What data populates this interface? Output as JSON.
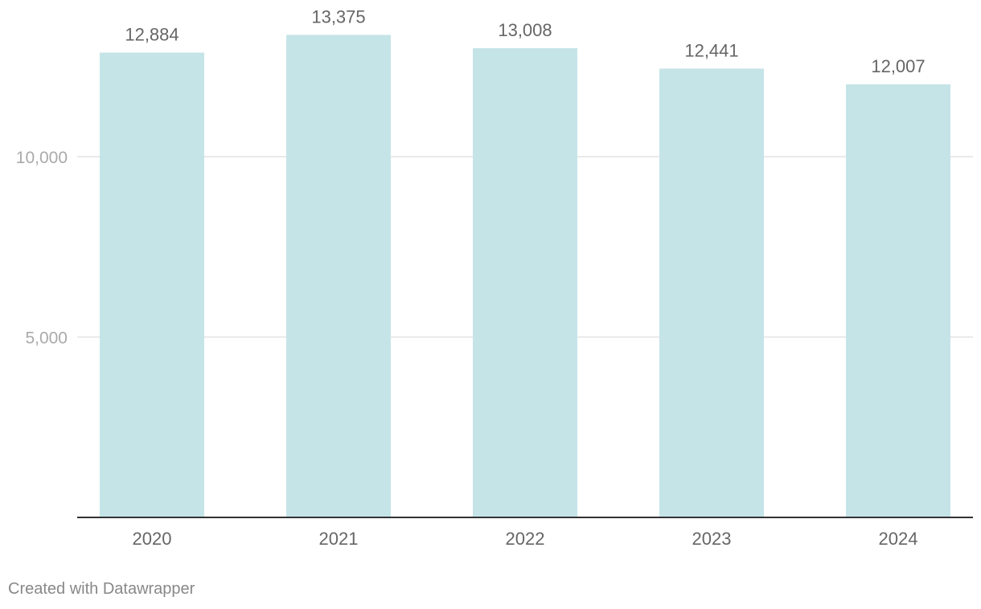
{
  "chart_data": {
    "type": "bar",
    "title": "",
    "xlabel": "",
    "ylabel": "",
    "categories": [
      "2020",
      "2021",
      "2022",
      "2023",
      "2024"
    ],
    "values": [
      12884,
      13375,
      13008,
      12441,
      12007
    ],
    "value_labels": [
      "12,884",
      "13,375",
      "13,008",
      "12,441",
      "12,007"
    ],
    "ylim": [
      0,
      14000
    ],
    "y_ticks": [
      {
        "value": 5000,
        "label": "5,000"
      },
      {
        "value": 10000,
        "label": "10,000"
      }
    ],
    "grid": true,
    "legend": "none",
    "colors": {
      "bar": "#c5e4e8",
      "grid": "#e3e3e3",
      "axis": "#333333",
      "tick_label": "#aaaaaa",
      "category_label": "#666666",
      "value_label": "#666666"
    }
  },
  "footer": {
    "credit": "Created with Datawrapper"
  }
}
